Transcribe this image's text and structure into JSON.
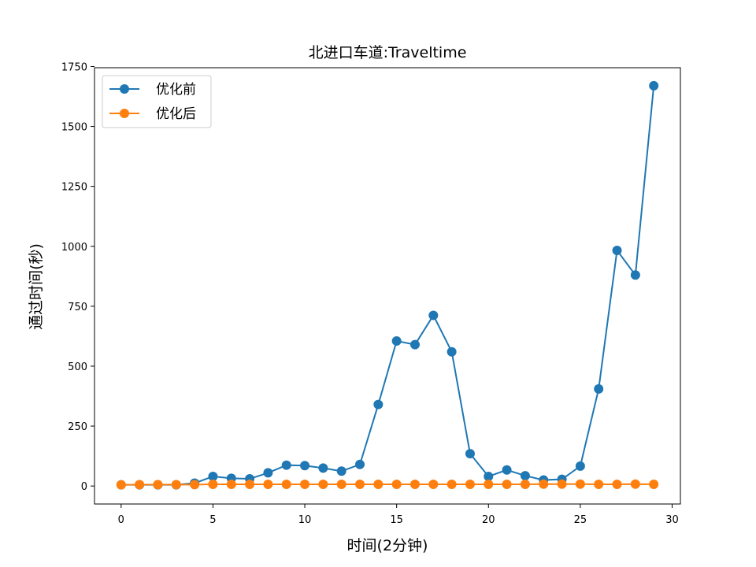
{
  "chart_data": {
    "type": "line",
    "title": "北进口车道:Traveltime",
    "xlabel": "时间(2分钟)",
    "ylabel": "通过时间(秒)",
    "xlim": [
      -1.45,
      30.45
    ],
    "ylim": [
      -75,
      1745
    ],
    "xticks": [
      0,
      5,
      10,
      15,
      20,
      25,
      30
    ],
    "yticks": [
      0,
      250,
      500,
      750,
      1000,
      1250,
      1500,
      1750
    ],
    "grid": false,
    "legend": "top-left",
    "x": [
      0,
      1,
      2,
      3,
      4,
      5,
      6,
      7,
      8,
      9,
      10,
      11,
      12,
      13,
      14,
      15,
      16,
      17,
      18,
      19,
      20,
      21,
      22,
      23,
      24,
      25,
      26,
      27,
      28,
      29
    ],
    "series": [
      {
        "name": "优化前",
        "color": "#1f77b4",
        "values": [
          5,
          5,
          5,
          5,
          12,
          40,
          32,
          30,
          55,
          87,
          85,
          75,
          62,
          90,
          340,
          605,
          590,
          712,
          560,
          135,
          40,
          67,
          43,
          25,
          28,
          83,
          405,
          983,
          880,
          1670
        ]
      },
      {
        "name": "优化后",
        "color": "#ff7f0e",
        "values": [
          5,
          6,
          6,
          6,
          6,
          7,
          7,
          7,
          7,
          7,
          7,
          7,
          7,
          7,
          7,
          7,
          7,
          7,
          7,
          7,
          7,
          7,
          7,
          8,
          8,
          8,
          7,
          7,
          8,
          7
        ]
      }
    ]
  }
}
